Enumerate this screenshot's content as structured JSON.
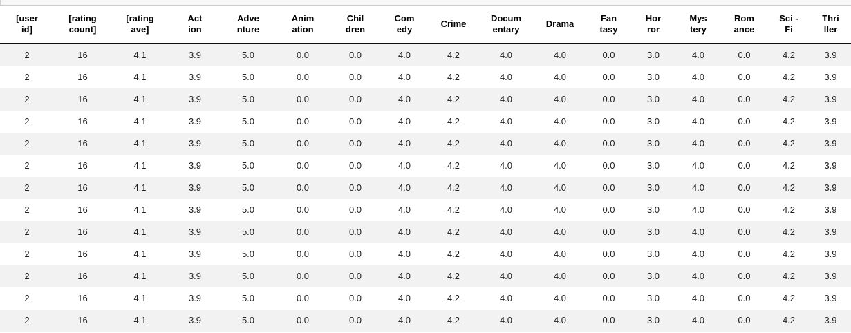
{
  "colors": {
    "stripe": "#f2f2f2",
    "header_rule": "#111111",
    "top_rule": "#cccccc",
    "strip_bg": "#f7f7f7",
    "text": "#212121"
  },
  "table": {
    "columns": [
      "[user\nid]",
      "[rating\ncount]",
      "[rating\nave]",
      "Act\nion",
      "Adve\nnture",
      "Anim\nation",
      "Chil\ndren",
      "Com\nedy",
      "Crime",
      "Docum\nentary",
      "Drama",
      "Fan\ntasy",
      "Hor\nror",
      "Mys\ntery",
      "Rom\nance",
      "Sci -\nFi",
      "Thri\nller"
    ],
    "rows": [
      [
        "2",
        "16",
        "4.1",
        "3.9",
        "5.0",
        "0.0",
        "0.0",
        "4.0",
        "4.2",
        "4.0",
        "4.0",
        "0.0",
        "3.0",
        "4.0",
        "0.0",
        "4.2",
        "3.9"
      ],
      [
        "2",
        "16",
        "4.1",
        "3.9",
        "5.0",
        "0.0",
        "0.0",
        "4.0",
        "4.2",
        "4.0",
        "4.0",
        "0.0",
        "3.0",
        "4.0",
        "0.0",
        "4.2",
        "3.9"
      ],
      [
        "2",
        "16",
        "4.1",
        "3.9",
        "5.0",
        "0.0",
        "0.0",
        "4.0",
        "4.2",
        "4.0",
        "4.0",
        "0.0",
        "3.0",
        "4.0",
        "0.0",
        "4.2",
        "3.9"
      ],
      [
        "2",
        "16",
        "4.1",
        "3.9",
        "5.0",
        "0.0",
        "0.0",
        "4.0",
        "4.2",
        "4.0",
        "4.0",
        "0.0",
        "3.0",
        "4.0",
        "0.0",
        "4.2",
        "3.9"
      ],
      [
        "2",
        "16",
        "4.1",
        "3.9",
        "5.0",
        "0.0",
        "0.0",
        "4.0",
        "4.2",
        "4.0",
        "4.0",
        "0.0",
        "3.0",
        "4.0",
        "0.0",
        "4.2",
        "3.9"
      ],
      [
        "2",
        "16",
        "4.1",
        "3.9",
        "5.0",
        "0.0",
        "0.0",
        "4.0",
        "4.2",
        "4.0",
        "4.0",
        "0.0",
        "3.0",
        "4.0",
        "0.0",
        "4.2",
        "3.9"
      ],
      [
        "2",
        "16",
        "4.1",
        "3.9",
        "5.0",
        "0.0",
        "0.0",
        "4.0",
        "4.2",
        "4.0",
        "4.0",
        "0.0",
        "3.0",
        "4.0",
        "0.0",
        "4.2",
        "3.9"
      ],
      [
        "2",
        "16",
        "4.1",
        "3.9",
        "5.0",
        "0.0",
        "0.0",
        "4.0",
        "4.2",
        "4.0",
        "4.0",
        "0.0",
        "3.0",
        "4.0",
        "0.0",
        "4.2",
        "3.9"
      ],
      [
        "2",
        "16",
        "4.1",
        "3.9",
        "5.0",
        "0.0",
        "0.0",
        "4.0",
        "4.2",
        "4.0",
        "4.0",
        "0.0",
        "3.0",
        "4.0",
        "0.0",
        "4.2",
        "3.9"
      ],
      [
        "2",
        "16",
        "4.1",
        "3.9",
        "5.0",
        "0.0",
        "0.0",
        "4.0",
        "4.2",
        "4.0",
        "4.0",
        "0.0",
        "3.0",
        "4.0",
        "0.0",
        "4.2",
        "3.9"
      ],
      [
        "2",
        "16",
        "4.1",
        "3.9",
        "5.0",
        "0.0",
        "0.0",
        "4.0",
        "4.2",
        "4.0",
        "4.0",
        "0.0",
        "3.0",
        "4.0",
        "0.0",
        "4.2",
        "3.9"
      ],
      [
        "2",
        "16",
        "4.1",
        "3.9",
        "5.0",
        "0.0",
        "0.0",
        "4.0",
        "4.2",
        "4.0",
        "4.0",
        "0.0",
        "3.0",
        "4.0",
        "0.0",
        "4.2",
        "3.9"
      ],
      [
        "2",
        "16",
        "4.1",
        "3.9",
        "5.0",
        "0.0",
        "0.0",
        "4.0",
        "4.2",
        "4.0",
        "4.0",
        "0.0",
        "3.0",
        "4.0",
        "0.0",
        "4.2",
        "3.9"
      ]
    ]
  }
}
